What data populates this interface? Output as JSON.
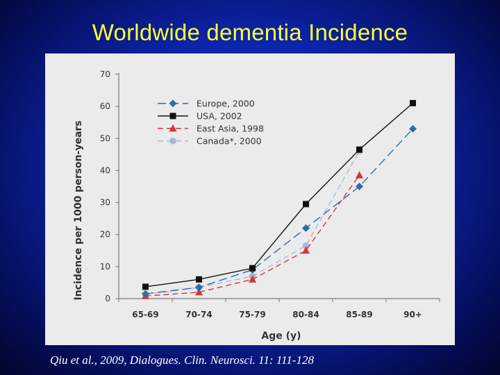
{
  "slide": {
    "title": "Worldwide dementia Incidence",
    "citation": "Qiu et al., 2009, Dialogues. Clin. Neurosci. 11: 111-128",
    "title_color": "#ffff33",
    "background_color": "#0c24a8"
  },
  "chart_data": {
    "type": "line",
    "title": "",
    "xlabel": "Age (y)",
    "ylabel": "Incidence per 1000 person-years",
    "categories": [
      "65-69",
      "70-74",
      "75-79",
      "80-84",
      "85-89",
      "90+"
    ],
    "ylim": [
      0,
      70
    ],
    "yticks": [
      0,
      10,
      20,
      30,
      40,
      50,
      60,
      70
    ],
    "grid": false,
    "legend_position": "top-left",
    "series": [
      {
        "name": "Europe, 2000",
        "values": [
          1.5,
          3.5,
          9,
          22,
          35,
          53
        ],
        "color": "#2e6da4",
        "marker": "diamond",
        "dash": "long-dash"
      },
      {
        "name": "USA, 2002",
        "values": [
          3.7,
          6,
          9.5,
          29.5,
          46.5,
          61
        ],
        "color": "#111111",
        "marker": "square",
        "dash": "solid"
      },
      {
        "name": "East Asia, 1998",
        "values": [
          0.8,
          2,
          6,
          15,
          38.5,
          null
        ],
        "color": "#d1373e",
        "marker": "triangle",
        "dash": "dash"
      },
      {
        "name": "Canada*, 2000",
        "values": [
          1.3,
          3.5,
          7,
          16.5,
          46,
          null
        ],
        "color": "#a6b8d8",
        "marker": "circle",
        "dash": "dash"
      }
    ]
  }
}
